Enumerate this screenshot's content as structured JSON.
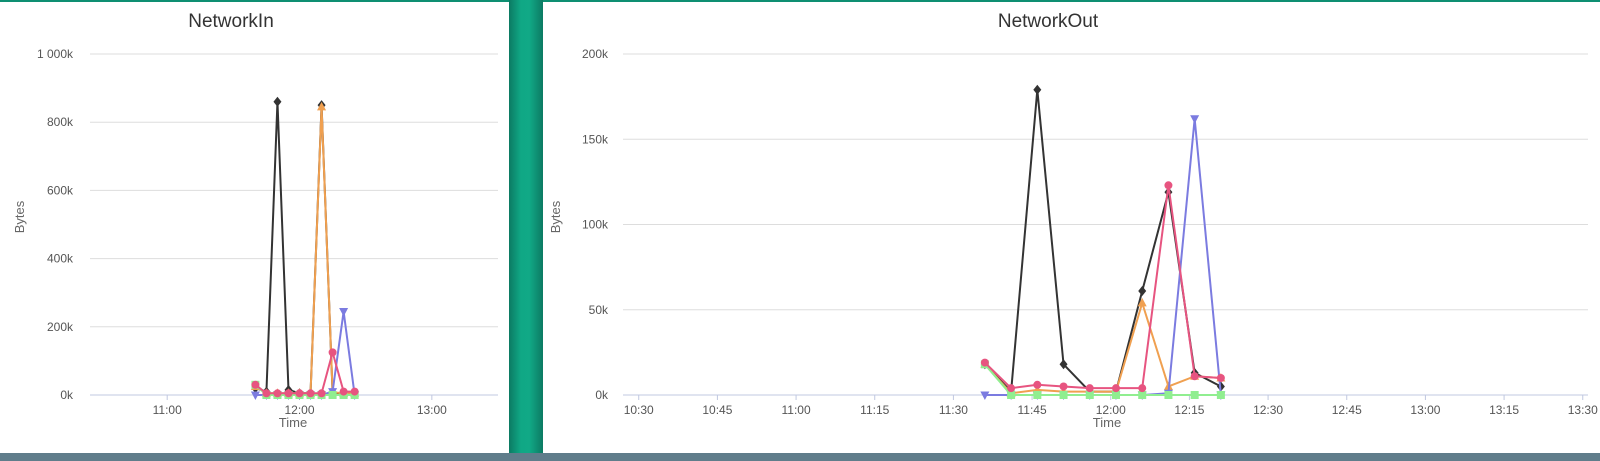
{
  "colors": {
    "background": "#0e8f72",
    "bottom_strip": "#607d8b",
    "grid": "#dddddd",
    "series_colors": [
      "#333333",
      "#f0a050",
      "#e75480",
      "#7b7be0",
      "#90ee90"
    ]
  },
  "chart_data": [
    {
      "type": "line",
      "title": "NetworkIn",
      "xlabel": "Time",
      "ylabel": "Bytes",
      "x_ticks": [
        "11:00",
        "12:00",
        "13:00"
      ],
      "y_ticks": [
        "0k",
        "200k",
        "400k",
        "600k",
        "800k",
        "1 000k"
      ],
      "xlim": [
        "10:25",
        "13:30"
      ],
      "ylim": [
        0,
        1000000
      ],
      "grid": true,
      "series": [
        {
          "color": "#333333",
          "marker": "diamond",
          "points": [
            [
              "11:40",
              20000
            ],
            [
              "11:45",
              10000
            ],
            [
              "11:50",
              860000
            ],
            [
              "11:55",
              15000
            ],
            [
              "12:00",
              5000
            ],
            [
              "12:05",
              5000
            ],
            [
              "12:10",
              850000
            ],
            [
              "12:15",
              5000
            ],
            [
              "12:20",
              5000
            ],
            [
              "12:25",
              5000
            ]
          ]
        },
        {
          "color": "#f0a050",
          "marker": "triangle",
          "points": [
            [
              "11:40",
              25000
            ],
            [
              "11:45",
              5000
            ],
            [
              "11:50",
              5000
            ],
            [
              "11:55",
              5000
            ],
            [
              "12:00",
              5000
            ],
            [
              "12:05",
              5000
            ],
            [
              "12:10",
              845000
            ],
            [
              "12:15",
              8000
            ],
            [
              "12:20",
              5000
            ],
            [
              "12:25",
              5000
            ]
          ]
        },
        {
          "color": "#7b7be0",
          "marker": "triangle-down",
          "points": [
            [
              "11:40",
              0
            ],
            [
              "11:45",
              0
            ],
            [
              "11:50",
              0
            ],
            [
              "11:55",
              0
            ],
            [
              "12:00",
              0
            ],
            [
              "12:05",
              0
            ],
            [
              "12:10",
              0
            ],
            [
              "12:15",
              10000
            ],
            [
              "12:20",
              245000
            ],
            [
              "12:25",
              0
            ]
          ]
        },
        {
          "color": "#90ee90",
          "marker": "square",
          "points": [
            [
              "11:40",
              30000
            ],
            [
              "11:45",
              0
            ],
            [
              "11:50",
              0
            ],
            [
              "11:55",
              0
            ],
            [
              "12:00",
              0
            ],
            [
              "12:05",
              0
            ],
            [
              "12:10",
              0
            ],
            [
              "12:15",
              0
            ],
            [
              "12:20",
              0
            ],
            [
              "12:25",
              0
            ]
          ]
        },
        {
          "color": "#e75480",
          "marker": "circle",
          "points": [
            [
              "11:40",
              30000
            ],
            [
              "11:45",
              5000
            ],
            [
              "11:50",
              5000
            ],
            [
              "11:55",
              5000
            ],
            [
              "12:00",
              5000
            ],
            [
              "12:05",
              5000
            ],
            [
              "12:10",
              5000
            ],
            [
              "12:15",
              125000
            ],
            [
              "12:20",
              10000
            ],
            [
              "12:25",
              10000
            ]
          ]
        }
      ]
    },
    {
      "type": "line",
      "title": "NetworkOut",
      "xlabel": "Time",
      "ylabel": "Bytes",
      "x_ticks": [
        "10:30",
        "10:45",
        "11:00",
        "11:15",
        "11:30",
        "11:45",
        "12:00",
        "12:15",
        "12:30",
        "12:45",
        "13:00",
        "13:15",
        "13:30"
      ],
      "y_ticks": [
        "0k",
        "50k",
        "100k",
        "150k",
        "200k"
      ],
      "xlim": [
        "10:27",
        "13:31"
      ],
      "ylim": [
        0,
        200000
      ],
      "grid": true,
      "series": [
        {
          "color": "#333333",
          "marker": "diamond",
          "points": [
            [
              "11:36",
              18000
            ],
            [
              "11:41",
              2000
            ],
            [
              "11:46",
              179000
            ],
            [
              "11:51",
              18000
            ],
            [
              "11:56",
              2000
            ],
            [
              "12:01",
              2000
            ],
            [
              "12:06",
              61000
            ],
            [
              "12:11",
              119000
            ],
            [
              "12:16",
              13000
            ],
            [
              "12:21",
              5000
            ]
          ]
        },
        {
          "color": "#f0a050",
          "marker": "triangle",
          "points": [
            [
              "11:36",
              18000
            ],
            [
              "11:41",
              1000
            ],
            [
              "11:46",
              3000
            ],
            [
              "11:51",
              2000
            ],
            [
              "11:56",
              2000
            ],
            [
              "12:01",
              2000
            ],
            [
              "12:06",
              54000
            ],
            [
              "12:11",
              5000
            ],
            [
              "12:16",
              11000
            ],
            [
              "12:21",
              10000
            ]
          ]
        },
        {
          "color": "#7b7be0",
          "marker": "triangle-down",
          "points": [
            [
              "11:36",
              0
            ],
            [
              "11:41",
              0
            ],
            [
              "11:46",
              0
            ],
            [
              "11:51",
              0
            ],
            [
              "11:56",
              0
            ],
            [
              "12:01",
              0
            ],
            [
              "12:06",
              0
            ],
            [
              "12:11",
              1000
            ],
            [
              "12:16",
              162000
            ],
            [
              "12:21",
              0
            ]
          ]
        },
        {
          "color": "#90ee90",
          "marker": "square",
          "points": [
            [
              "11:36",
              18000
            ],
            [
              "11:41",
              0
            ],
            [
              "11:46",
              0
            ],
            [
              "11:51",
              0
            ],
            [
              "11:56",
              0
            ],
            [
              "12:01",
              0
            ],
            [
              "12:06",
              0
            ],
            [
              "12:11",
              0
            ],
            [
              "12:16",
              0
            ],
            [
              "12:21",
              0
            ]
          ]
        },
        {
          "color": "#e75480",
          "marker": "circle",
          "points": [
            [
              "11:36",
              19000
            ],
            [
              "11:41",
              4000
            ],
            [
              "11:46",
              6000
            ],
            [
              "11:51",
              5000
            ],
            [
              "11:56",
              4000
            ],
            [
              "12:01",
              4000
            ],
            [
              "12:06",
              4000
            ],
            [
              "12:11",
              123000
            ],
            [
              "12:16",
              11000
            ],
            [
              "12:21",
              10000
            ]
          ]
        }
      ]
    }
  ]
}
